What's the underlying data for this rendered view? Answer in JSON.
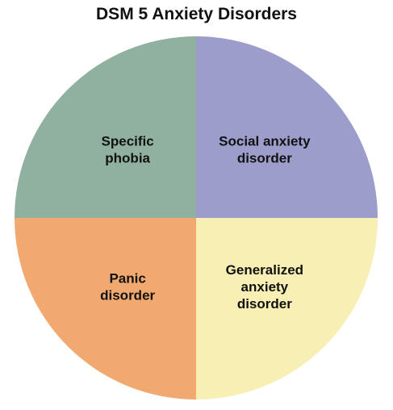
{
  "chart_data": {
    "type": "pie",
    "title": "DSM 5 Anxiety Disorders",
    "categories": [
      "Social anxiety disorder",
      "Generalized anxiety disorder",
      "Panic disorder",
      "Specific phobia"
    ],
    "values": [
      25,
      25,
      25,
      25
    ],
    "slices": [
      {
        "label_lines": [
          "Social anxiety",
          "disorder"
        ],
        "value": 25,
        "color": "#9c9dca"
      },
      {
        "label_lines": [
          "Generalized",
          "anxiety",
          "disorder"
        ],
        "value": 25,
        "color": "#f7efb3"
      },
      {
        "label_lines": [
          "Panic",
          "disorder"
        ],
        "value": 25,
        "color": "#f1a970"
      },
      {
        "label_lines": [
          "Specific",
          "phobia"
        ],
        "value": 25,
        "color": "#91b1a0"
      }
    ],
    "legend": "none"
  }
}
